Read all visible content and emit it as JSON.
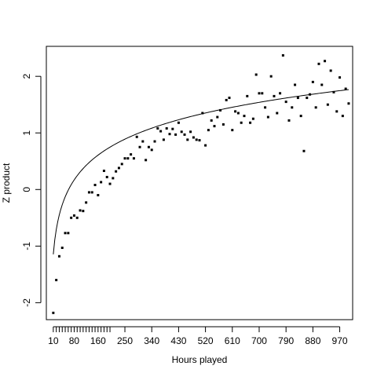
{
  "chart_data": {
    "type": "scatter",
    "title": "",
    "xlabel": "Hours played",
    "ylabel": "Z product",
    "xlim": [
      -13.3,
      1013.3
    ],
    "ylim": [
      -2.3,
      2.53
    ],
    "x_tick_labels": [
      10,
      80,
      160,
      250,
      340,
      430,
      520,
      610,
      700,
      790,
      880,
      970
    ],
    "x_minor_ticks": [
      10,
      20,
      30,
      40,
      50,
      60,
      70,
      80,
      90,
      100,
      110,
      120,
      130,
      140,
      150,
      160,
      170,
      180,
      190,
      200
    ],
    "y_ticks": [
      -2,
      -1,
      0,
      1,
      2
    ],
    "grid": false,
    "legend": null,
    "colors": {
      "points": "#000000",
      "line": "#000000",
      "axes": "#000000",
      "background": "#ffffff"
    },
    "fit_curve": {
      "model": "log",
      "a": -2.6,
      "b": 0.632
    },
    "series": [
      {
        "points": [
          [
            10,
            -2.18
          ],
          [
            20,
            -1.6
          ],
          [
            30,
            -1.18
          ],
          [
            40,
            -1.03
          ],
          [
            50,
            -0.77
          ],
          [
            60,
            -0.77
          ],
          [
            70,
            -0.5
          ],
          [
            80,
            -0.46
          ],
          [
            90,
            -0.5
          ],
          [
            100,
            -0.37
          ],
          [
            110,
            -0.38
          ],
          [
            120,
            -0.23
          ],
          [
            130,
            -0.05
          ],
          [
            140,
            -0.05
          ],
          [
            150,
            0.08
          ],
          [
            160,
            -0.1
          ],
          [
            170,
            0.13
          ],
          [
            180,
            0.33
          ],
          [
            190,
            0.22
          ],
          [
            200,
            0.1
          ],
          [
            210,
            0.2
          ],
          [
            220,
            0.32
          ],
          [
            230,
            0.38
          ],
          [
            240,
            0.45
          ],
          [
            250,
            0.55
          ],
          [
            260,
            0.55
          ],
          [
            270,
            0.62
          ],
          [
            280,
            0.55
          ],
          [
            290,
            0.93
          ],
          [
            300,
            0.75
          ],
          [
            310,
            0.85
          ],
          [
            320,
            0.52
          ],
          [
            330,
            0.75
          ],
          [
            340,
            0.7
          ],
          [
            350,
            0.85
          ],
          [
            360,
            1.08
          ],
          [
            370,
            1.03
          ],
          [
            380,
            0.88
          ],
          [
            390,
            1.08
          ],
          [
            400,
            0.98
          ],
          [
            410,
            1.07
          ],
          [
            420,
            0.97
          ],
          [
            430,
            1.18
          ],
          [
            440,
            1.02
          ],
          [
            450,
            0.97
          ],
          [
            460,
            0.88
          ],
          [
            470,
            1.02
          ],
          [
            480,
            0.92
          ],
          [
            490,
            0.88
          ],
          [
            500,
            0.87
          ],
          [
            510,
            1.35
          ],
          [
            520,
            0.78
          ],
          [
            530,
            1.05
          ],
          [
            540,
            1.22
          ],
          [
            550,
            1.12
          ],
          [
            560,
            1.28
          ],
          [
            570,
            1.4
          ],
          [
            580,
            1.15
          ],
          [
            590,
            1.58
          ],
          [
            600,
            1.62
          ],
          [
            610,
            1.05
          ],
          [
            620,
            1.38
          ],
          [
            630,
            1.35
          ],
          [
            640,
            1.18
          ],
          [
            650,
            1.3
          ],
          [
            660,
            1.65
          ],
          [
            670,
            1.18
          ],
          [
            680,
            1.25
          ],
          [
            690,
            2.03
          ],
          [
            700,
            1.7
          ],
          [
            710,
            1.7
          ],
          [
            720,
            1.45
          ],
          [
            730,
            1.28
          ],
          [
            740,
            2.0
          ],
          [
            750,
            1.65
          ],
          [
            760,
            1.35
          ],
          [
            770,
            1.7
          ],
          [
            780,
            2.37
          ],
          [
            790,
            1.55
          ],
          [
            800,
            1.22
          ],
          [
            810,
            1.45
          ],
          [
            820,
            1.85
          ],
          [
            830,
            1.62
          ],
          [
            840,
            1.3
          ],
          [
            850,
            0.68
          ],
          [
            860,
            1.62
          ],
          [
            870,
            1.68
          ],
          [
            880,
            1.9
          ],
          [
            890,
            1.45
          ],
          [
            900,
            2.22
          ],
          [
            910,
            1.85
          ],
          [
            920,
            2.27
          ],
          [
            930,
            1.5
          ],
          [
            940,
            2.1
          ],
          [
            950,
            1.72
          ],
          [
            960,
            1.38
          ],
          [
            970,
            1.98
          ],
          [
            980,
            1.3
          ],
          [
            990,
            1.78
          ],
          [
            1000,
            1.52
          ]
        ]
      }
    ]
  }
}
